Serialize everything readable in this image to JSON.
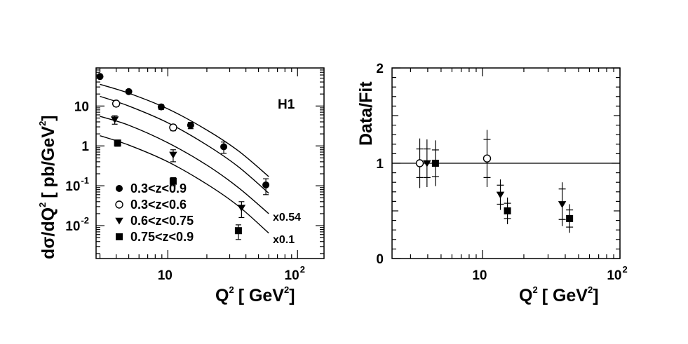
{
  "chart_data": [
    {
      "type": "scatter",
      "panel": "left",
      "xlabel": "Q",
      "xlabel_sup": "2",
      "xlabel_unit": "[ GeV",
      "xlabel_unit_sup": "2",
      "xlabel_close": "]",
      "ylabel": "dσ/dQ",
      "ylabel_sup": "2",
      "ylabel_unit": "[ pb/GeV",
      "ylabel_unit_sup": "2",
      "ylabel_close": "]",
      "x_scale": "log",
      "y_scale": "log",
      "xlim": [
        2.8,
        160
      ],
      "ylim": [
        0.0015,
        90
      ],
      "x_ticks": [
        {
          "value": 10,
          "base": "10",
          "exp": ""
        },
        {
          "value": 100,
          "base": "10",
          "exp": "2"
        }
      ],
      "y_ticks": [
        {
          "value": 10,
          "base": "10",
          "exp": ""
        },
        {
          "value": 1,
          "base": "1",
          "exp": ""
        },
        {
          "value": 0.1,
          "base": "10",
          "exp": "-1"
        },
        {
          "value": 0.01,
          "base": "10",
          "exp": "-2"
        }
      ],
      "annotation": "H1",
      "scale_labels": [
        {
          "text": "x0.54",
          "x": 58,
          "y": 0.0135
        },
        {
          "text": "x0.1",
          "x": 58,
          "y": 0.0034
        }
      ],
      "legend_position": "bottom-left",
      "series": [
        {
          "name": "0.3<z<0.9",
          "marker": "filled-circle",
          "points": [
            {
              "x": 3.0,
              "y": 55,
              "err": 4
            },
            {
              "x": 5.0,
              "y": 23,
              "err": 2.5
            },
            {
              "x": 8.9,
              "y": 9.5,
              "err": 1.3
            },
            {
              "x": 15,
              "y": 3.3,
              "err": 0.6
            },
            {
              "x": 27,
              "y": 0.95,
              "err": 0.3
            },
            {
              "x": 57,
              "y": 0.105,
              "err": 0.045
            }
          ],
          "fit": [
            [
              3.0,
              35
            ],
            [
              5.0,
              21
            ],
            [
              10,
              8.5
            ],
            [
              20,
              2.5
            ],
            [
              35,
              0.75
            ],
            [
              60,
              0.17
            ]
          ]
        },
        {
          "name": "0.3<z<0.6",
          "marker": "open-circle",
          "points": [
            {
              "x": 4.0,
              "y": 11.5,
              "err": 1.8
            },
            {
              "x": 11,
              "y": 2.9,
              "err": 0.5
            }
          ],
          "fit": [
            [
              3.0,
              17.5
            ],
            [
              5.0,
              10
            ],
            [
              10,
              3.8
            ],
            [
              20,
              1.05
            ],
            [
              35,
              0.3
            ],
            [
              60,
              0.065
            ]
          ]
        },
        {
          "name": "0.6<z<0.75",
          "marker": "filled-triangle-down",
          "points": [
            {
              "x": 3.9,
              "y": 4.6,
              "err": 1.1
            },
            {
              "x": 11,
              "y": 0.6,
              "err": 0.2
            },
            {
              "x": 37,
              "y": 0.028,
              "err": 0.012
            }
          ],
          "fit": [
            [
              3.0,
              5.5
            ],
            [
              5.0,
              3.3
            ],
            [
              10,
              1.2
            ],
            [
              20,
              0.33
            ],
            [
              35,
              0.09
            ],
            [
              60,
              0.02
            ]
          ]
        },
        {
          "name": "0.75<z<0.9",
          "marker": "filled-square",
          "points": [
            {
              "x": 4.1,
              "y": 1.18,
              "err": 0.2
            },
            {
              "x": 11,
              "y": 0.13,
              "err": 0.03
            },
            {
              "x": 35,
              "y": 0.0075,
              "err": 0.003
            }
          ],
          "fit": [
            [
              3.0,
              1.8
            ],
            [
              5.0,
              1.05
            ],
            [
              10,
              0.4
            ],
            [
              20,
              0.11
            ],
            [
              35,
              0.031
            ],
            [
              60,
              0.0065
            ]
          ]
        }
      ]
    },
    {
      "type": "scatter",
      "panel": "right",
      "xlabel": "Q",
      "xlabel_sup": "2",
      "xlabel_unit": "[ GeV",
      "xlabel_unit_sup": "2",
      "xlabel_close": "]",
      "ylabel": "Data/Fit",
      "x_scale": "log",
      "y_scale": "linear",
      "xlim": [
        2.2,
        100
      ],
      "ylim": [
        0,
        2
      ],
      "x_ticks": [
        {
          "value": 10,
          "base": "10",
          "exp": ""
        },
        {
          "value": 100,
          "base": "10",
          "exp": "2"
        }
      ],
      "y_ticks": [
        {
          "value": 0,
          "label": "0"
        },
        {
          "value": 1,
          "label": "1"
        },
        {
          "value": 2,
          "label": "2"
        }
      ],
      "reference_line": 1,
      "series": [
        {
          "marker": "open-circle",
          "points": [
            {
              "x": 3.5,
              "y": 1.0,
              "err_stat": 0.15,
              "err_tot": 0.26
            },
            {
              "x": 10.8,
              "y": 1.05,
              "err_stat": 0.2,
              "err_tot": 0.3
            }
          ]
        },
        {
          "marker": "filled-triangle-down",
          "points": [
            {
              "x": 3.95,
              "y": 1.0,
              "err_stat": 0.15,
              "err_tot": 0.25
            },
            {
              "x": 13.5,
              "y": 0.67,
              "err_stat": 0.1,
              "err_tot": 0.16
            },
            {
              "x": 38,
              "y": 0.57,
              "err_stat": 0.16,
              "err_tot": 0.23
            }
          ]
        },
        {
          "marker": "filled-square",
          "points": [
            {
              "x": 4.55,
              "y": 1.0,
              "err_stat": 0.14,
              "err_tot": 0.24
            },
            {
              "x": 15.2,
              "y": 0.5,
              "err_stat": 0.08,
              "err_tot": 0.14
            },
            {
              "x": 43,
              "y": 0.42,
              "err_stat": 0.09,
              "err_tot": 0.15
            }
          ]
        }
      ]
    }
  ]
}
